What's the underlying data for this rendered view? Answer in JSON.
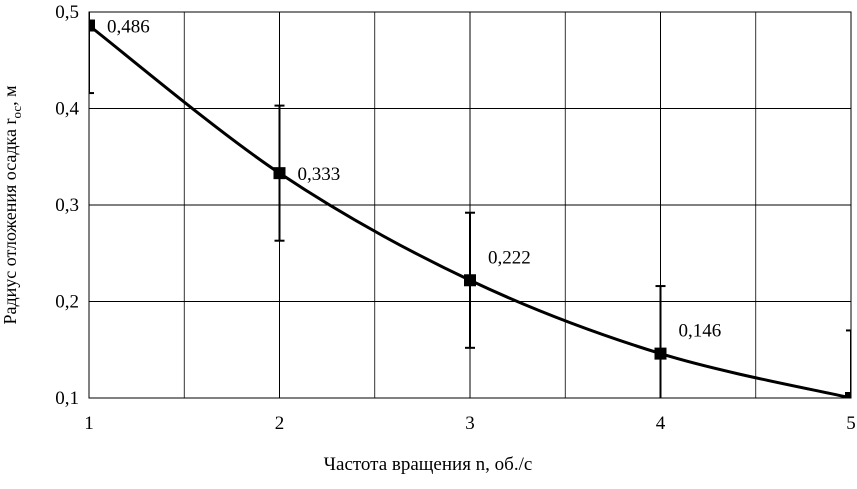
{
  "chart_data": {
    "type": "line",
    "xlabel": "Частота вращения n, об./с",
    "ylabel": [
      "Радиус отложения осадка r",
      "ос",
      ", м"
    ],
    "x": [
      1,
      2,
      3,
      4,
      5
    ],
    "series": [
      {
        "values": [
          0.486,
          0.333,
          0.222,
          0.146,
          0.1
        ],
        "value_labels": [
          "0,486",
          "0,333",
          "0,222",
          "0,146",
          null
        ],
        "errors": [
          0.07,
          0.07,
          0.07,
          0.07,
          0.07
        ],
        "color": "#000000"
      }
    ],
    "xlim": [
      1,
      5
    ],
    "ylim": [
      0.1,
      0.5
    ],
    "xticks": [
      1,
      2,
      3,
      4,
      5
    ],
    "yticks": [
      {
        "value": 0.1,
        "label": "0,1"
      },
      {
        "value": 0.2,
        "label": "0,2"
      },
      {
        "value": 0.3,
        "label": "0,3"
      },
      {
        "value": 0.4,
        "label": "0,4"
      },
      {
        "value": 0.5,
        "label": "0,5"
      }
    ],
    "grid": true
  }
}
